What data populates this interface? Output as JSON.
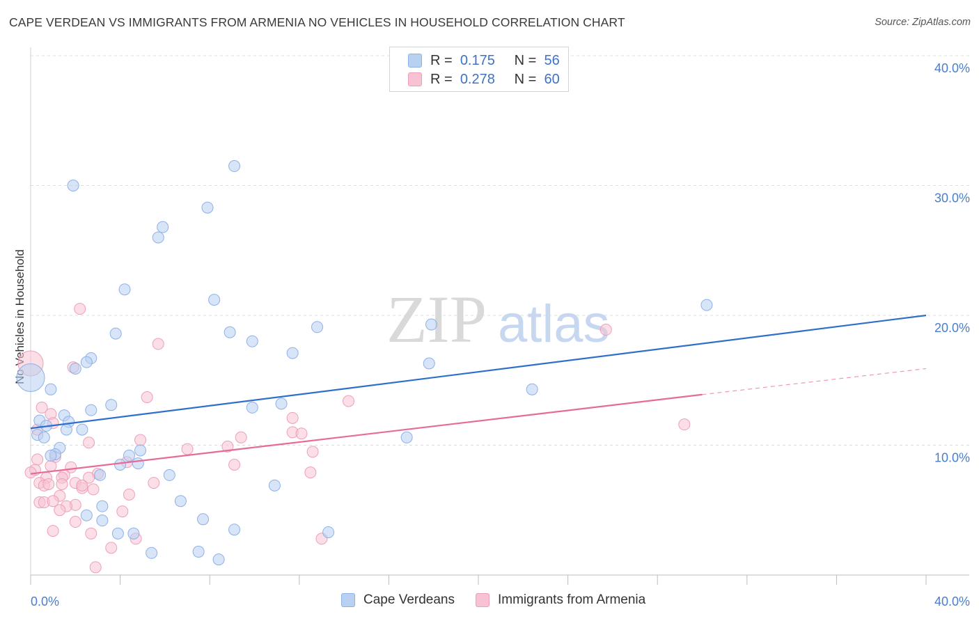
{
  "header": {
    "title": "CAPE VERDEAN VS IMMIGRANTS FROM ARMENIA NO VEHICLES IN HOUSEHOLD CORRELATION CHART",
    "source": "Source: ZipAtlas.com"
  },
  "watermark": {
    "zip": "ZIP",
    "atlas": "atlas"
  },
  "legend": {
    "rows": [
      {
        "r_label": "R =",
        "r_value": "0.175",
        "n_label": "N =",
        "n_value": "56"
      },
      {
        "r_label": "R =",
        "r_value": "0.278",
        "n_label": "N =",
        "n_value": "60"
      }
    ]
  },
  "bottom_legend": {
    "series1": "Cape Verdeans",
    "series2": "Immigrants from Armenia"
  },
  "colors": {
    "blue_fill": "#b8d0f2",
    "blue_stroke": "#8db1e6",
    "blue_line": "#2f6fcc",
    "pink_fill": "#f7c2d2",
    "pink_stroke": "#ee9fb9",
    "pink_line": "#e66b96",
    "tick_text": "#4a7ecb",
    "grid": "#dcdcdc"
  },
  "chart_data": {
    "type": "scatter",
    "title": "CAPE VERDEAN VS IMMIGRANTS FROM ARMENIA NO VEHICLES IN HOUSEHOLD CORRELATION CHART",
    "xlabel": "",
    "ylabel": "No Vehicles in Household",
    "xlim": [
      0,
      40
    ],
    "ylim": [
      0,
      40
    ],
    "x_tick_labels": [
      "0.0%",
      "40.0%"
    ],
    "y_ticks": [
      10,
      20,
      30,
      40
    ],
    "y_tick_labels": [
      "10.0%",
      "20.0%",
      "30.0%",
      "40.0%"
    ],
    "grid": "horizontal dashed",
    "legend_position": "top-center",
    "series": [
      {
        "name": "Cape Verdeans",
        "color": "#b8d0f2",
        "r": 0.175,
        "n": 56,
        "trend": {
          "x": [
            0,
            40
          ],
          "y": [
            11.3,
            20.0
          ]
        },
        "points": [
          [
            1.9,
            30.0
          ],
          [
            9.1,
            31.5
          ],
          [
            7.9,
            28.3
          ],
          [
            5.9,
            26.8
          ],
          [
            5.7,
            26.0
          ],
          [
            4.2,
            22.0
          ],
          [
            8.2,
            21.2
          ],
          [
            30.2,
            20.8
          ],
          [
            17.9,
            19.3
          ],
          [
            12.8,
            19.1
          ],
          [
            8.9,
            18.7
          ],
          [
            3.8,
            18.6
          ],
          [
            9.9,
            18.0
          ],
          [
            11.7,
            17.1
          ],
          [
            2.7,
            16.7
          ],
          [
            2.5,
            16.4
          ],
          [
            17.8,
            16.3
          ],
          [
            2.0,
            15.9
          ],
          [
            0.0,
            15.2
          ],
          [
            0.9,
            14.3
          ],
          [
            22.4,
            14.3
          ],
          [
            11.2,
            13.2
          ],
          [
            3.6,
            13.1
          ],
          [
            9.9,
            12.9
          ],
          [
            2.7,
            12.7
          ],
          [
            1.5,
            12.3
          ],
          [
            0.4,
            11.9
          ],
          [
            1.7,
            11.8
          ],
          [
            0.7,
            11.5
          ],
          [
            1.6,
            11.2
          ],
          [
            2.3,
            11.2
          ],
          [
            0.3,
            10.8
          ],
          [
            0.6,
            10.6
          ],
          [
            16.8,
            10.6
          ],
          [
            1.3,
            9.8
          ],
          [
            4.9,
            9.6
          ],
          [
            1.1,
            9.3
          ],
          [
            4.4,
            9.2
          ],
          [
            0.9,
            9.2
          ],
          [
            4.0,
            8.5
          ],
          [
            4.8,
            8.6
          ],
          [
            3.1,
            7.7
          ],
          [
            6.2,
            7.7
          ],
          [
            10.9,
            6.9
          ],
          [
            6.7,
            5.7
          ],
          [
            3.2,
            5.3
          ],
          [
            2.5,
            4.6
          ],
          [
            3.2,
            4.2
          ],
          [
            7.7,
            4.3
          ],
          [
            9.1,
            3.5
          ],
          [
            3.9,
            3.2
          ],
          [
            4.6,
            3.2
          ],
          [
            13.3,
            3.3
          ],
          [
            7.5,
            1.8
          ],
          [
            5.4,
            1.7
          ],
          [
            8.4,
            1.2
          ]
        ]
      },
      {
        "name": "Immigrants from Armenia",
        "color": "#f7c2d2",
        "r": 0.278,
        "n": 60,
        "trend": {
          "x": [
            0,
            30.0
          ],
          "y": [
            7.8,
            13.9
          ]
        },
        "trend_extension": {
          "x": [
            30.0,
            40
          ],
          "y": [
            13.9,
            15.9
          ]
        },
        "points": [
          [
            2.2,
            20.5
          ],
          [
            25.7,
            18.9
          ],
          [
            5.7,
            17.8
          ],
          [
            0.0,
            16.3
          ],
          [
            1.9,
            16.0
          ],
          [
            5.2,
            13.7
          ],
          [
            14.2,
            13.4
          ],
          [
            0.5,
            12.9
          ],
          [
            0.9,
            12.4
          ],
          [
            11.7,
            12.1
          ],
          [
            1.0,
            11.7
          ],
          [
            29.2,
            11.6
          ],
          [
            0.3,
            11.2
          ],
          [
            11.7,
            11.0
          ],
          [
            12.1,
            10.9
          ],
          [
            9.4,
            10.6
          ],
          [
            4.9,
            10.4
          ],
          [
            2.6,
            10.2
          ],
          [
            8.8,
            9.9
          ],
          [
            7.0,
            9.7
          ],
          [
            12.6,
            9.5
          ],
          [
            1.1,
            9.1
          ],
          [
            0.3,
            8.9
          ],
          [
            4.3,
            8.7
          ],
          [
            9.1,
            8.5
          ],
          [
            0.9,
            8.4
          ],
          [
            1.8,
            8.3
          ],
          [
            0.2,
            8.1
          ],
          [
            0.0,
            7.9
          ],
          [
            12.5,
            7.9
          ],
          [
            1.5,
            7.7
          ],
          [
            3.0,
            7.8
          ],
          [
            0.7,
            7.5
          ],
          [
            1.4,
            7.5
          ],
          [
            2.6,
            7.5
          ],
          [
            2.0,
            7.1
          ],
          [
            0.4,
            7.1
          ],
          [
            5.5,
            7.1
          ],
          [
            0.6,
            6.9
          ],
          [
            2.3,
            6.7
          ],
          [
            1.3,
            6.1
          ],
          [
            4.4,
            6.2
          ],
          [
            0.4,
            5.6
          ],
          [
            0.6,
            5.6
          ],
          [
            1.0,
            5.7
          ],
          [
            2.0,
            5.4
          ],
          [
            1.6,
            5.3
          ],
          [
            1.3,
            5.0
          ],
          [
            4.1,
            4.9
          ],
          [
            2.0,
            4.1
          ],
          [
            1.0,
            3.4
          ],
          [
            2.7,
            3.2
          ],
          [
            4.7,
            2.8
          ],
          [
            13.0,
            2.8
          ],
          [
            3.6,
            2.1
          ],
          [
            2.9,
            0.6
          ],
          [
            1.4,
            7.0
          ],
          [
            2.8,
            6.6
          ],
          [
            0.8,
            7.0
          ],
          [
            2.3,
            6.9
          ]
        ]
      }
    ]
  }
}
